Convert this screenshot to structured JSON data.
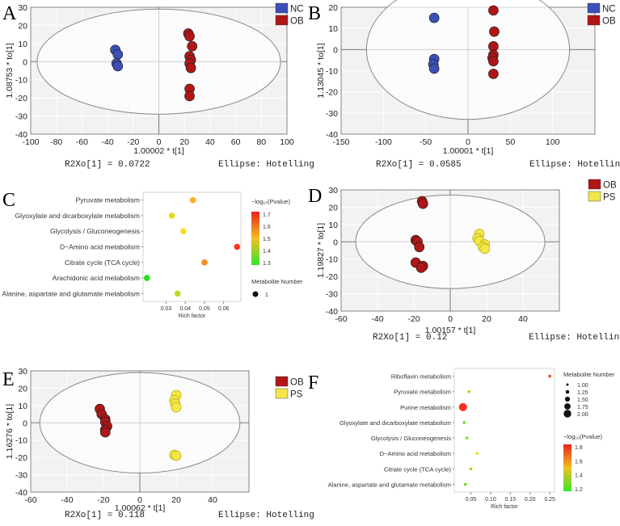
{
  "figure_labels": {
    "A": "A",
    "B": "B",
    "C": "C",
    "D": "D",
    "E": "E",
    "F": "F"
  },
  "colors": {
    "NC": "#3b4fb8",
    "OB": "#b01616",
    "PS": "#f2e64a",
    "plot_bg": "#f2f2f2",
    "grid": "#ffffff"
  },
  "chart_data": [
    {
      "panel": "A",
      "type": "scatter",
      "xlabel": "1.00002 * t[1]",
      "ylabel": "1.08753 * to[1]",
      "xlim": [
        -100,
        100
      ],
      "ylim": [
        -40,
        30
      ],
      "xticks": [
        -100,
        -80,
        -60,
        -40,
        -20,
        0,
        20,
        40,
        60,
        80,
        100
      ],
      "yticks": [
        -40,
        -30,
        -20,
        -10,
        0,
        10,
        20,
        30
      ],
      "ellipse": {
        "rx": 95,
        "ry": 29
      },
      "stats": "R2Xo[1] = 0.0722",
      "ellipse_label": "Ellipse: Hotelling",
      "legend": [
        "NC",
        "OB"
      ],
      "series": [
        {
          "name": "NC",
          "points": [
            [
              -34,
              6.5
            ],
            [
              -32,
              4
            ],
            [
              -33,
              -1
            ],
            [
              -32,
              -2.5
            ]
          ]
        },
        {
          "name": "OB",
          "points": [
            [
              23,
              15.5
            ],
            [
              24,
              14
            ],
            [
              26,
              8.5
            ],
            [
              24,
              3
            ],
            [
              25,
              1
            ],
            [
              24,
              -1
            ],
            [
              25,
              -3.5
            ],
            [
              24,
              -15
            ],
            [
              24,
              -19
            ]
          ]
        }
      ]
    },
    {
      "panel": "B",
      "type": "scatter",
      "xlabel": "1.00001 * t[1]",
      "ylabel": "1.13045 * to[1]",
      "xlim": [
        -150,
        150
      ],
      "ylim": [
        -40,
        20
      ],
      "xticks": [
        -150,
        -100,
        -50,
        0,
        50,
        100
      ],
      "yticks": [
        -40,
        -30,
        -20,
        -10,
        0,
        10,
        20
      ],
      "ellipse": {
        "rx": 120,
        "ry": 33
      },
      "stats": "R2Xo[1] = 0.0585",
      "ellipse_label": "Ellipse: Hotelling",
      "legend": [
        "NC",
        "OB"
      ],
      "series": [
        {
          "name": "NC",
          "points": [
            [
              -40,
              15
            ],
            [
              -40,
              -4.5
            ],
            [
              -41,
              -7
            ],
            [
              -40,
              -9
            ]
          ]
        },
        {
          "name": "OB",
          "points": [
            [
              30,
              18.5
            ],
            [
              31,
              8.5
            ],
            [
              30,
              1.5
            ],
            [
              30,
              -2.5
            ],
            [
              29,
              -4
            ],
            [
              30,
              -5.5
            ],
            [
              30,
              -11.5
            ]
          ]
        }
      ]
    },
    {
      "panel": "C",
      "type": "bubble",
      "categories": [
        "Pyruvate metabolism",
        "Glyoxylate and dicarboxylate metabolism",
        "Glycolysis / Gluconeogenesis",
        "D−Amino acid metabolism",
        "Citrate cycle (TCA cycle)",
        "Arachidonic acid metabolism",
        "Alanine, aspartate and glutamate metabolism"
      ],
      "values": [
        0.044,
        0.033,
        0.039,
        0.067,
        0.05,
        0.02,
        0.036
      ],
      "neglog10_p": [
        1.55,
        1.45,
        1.48,
        1.72,
        1.6,
        1.22,
        1.4
      ],
      "metabolite_number": [
        1,
        1,
        1,
        1,
        1,
        1,
        1
      ],
      "xlabel": "Rich factor",
      "xticks": [
        0.03,
        0.04,
        0.05,
        0.06
      ],
      "xlim": [
        0.018,
        0.069
      ],
      "color_title": "−log₁₀(Pvalue)",
      "color_ticks": [
        1.7,
        1.6,
        1.5,
        1.4,
        1.3
      ],
      "color_range": [
        1.22,
        1.75
      ],
      "size_title": "Metabolite Number",
      "size_ticks": [
        "1"
      ]
    },
    {
      "panel": "D",
      "type": "scatter",
      "xlabel": "1.00157 * t[1]",
      "ylabel": "1.19827 * to[1]",
      "xlim": [
        -60,
        60
      ],
      "ylim": [
        -40,
        30
      ],
      "xticks": [
        -60,
        -40,
        -20,
        0,
        20,
        40
      ],
      "yticks": [
        -40,
        -30,
        -20,
        -10,
        0,
        10,
        20,
        30
      ],
      "ellipse": {
        "rx": 52,
        "ry": 27
      },
      "stats": "R2Xo[1] = 0.12",
      "ellipse_label": "Ellipse: Hotelling",
      "legend": [
        "OB",
        "PS"
      ],
      "series": [
        {
          "name": "OB",
          "points": [
            [
              -15.5,
              23.5
            ],
            [
              -15,
              22
            ],
            [
              -19,
              1
            ],
            [
              -18,
              0
            ],
            [
              -17,
              -3
            ],
            [
              -19,
              -12
            ],
            [
              -15,
              -14
            ],
            [
              -16,
              -15
            ]
          ]
        },
        {
          "name": "PS",
          "points": [
            [
              16,
              4.5
            ],
            [
              15,
              2
            ],
            [
              16,
              0.5
            ],
            [
              19,
              -1.5
            ],
            [
              18,
              -3
            ],
            [
              19,
              -4
            ]
          ]
        }
      ]
    },
    {
      "panel": "E",
      "type": "scatter",
      "xlabel": "1.00062 * t[1]",
      "ylabel": "1.16276 * to[1]",
      "xlim": [
        -60,
        60
      ],
      "ylim": [
        -40,
        30
      ],
      "xticks": [
        -60,
        -40,
        -20,
        0,
        20,
        40
      ],
      "yticks": [
        -40,
        -30,
        -20,
        -10,
        0,
        10,
        20,
        30
      ],
      "ellipse": {
        "rx": 55,
        "ry": 29
      },
      "stats": "R2Xo[1] = 0.118",
      "ellipse_label": "Ellipse: Hotelling",
      "legend": [
        "OB",
        "PS"
      ],
      "series": [
        {
          "name": "OB",
          "points": [
            [
              -22,
              8
            ],
            [
              -21,
              5
            ],
            [
              -19,
              2
            ],
            [
              -19,
              0.5
            ],
            [
              -18,
              -2
            ],
            [
              -19,
              -4
            ],
            [
              -19,
              -5.5
            ]
          ]
        },
        {
          "name": "PS",
          "points": [
            [
              20,
              16
            ],
            [
              19,
              13
            ],
            [
              19.5,
              11
            ],
            [
              20,
              9
            ],
            [
              19,
              -18.5
            ],
            [
              20,
              -19
            ]
          ]
        }
      ]
    },
    {
      "panel": "F",
      "type": "bubble",
      "categories": [
        "Riboflavin metabolism",
        "Pyruvate metabolism",
        "Purine metabolism",
        "Glyoxylate and dicarboxylate metabolism",
        "Glycolysis / Gluconeogenesis",
        "D−Amino acid metabolism",
        "Citrate cycle (TCA cycle)",
        "Alanine, aspartate and glutamate metabolism"
      ],
      "values": [
        0.25,
        0.045,
        0.03,
        0.033,
        0.04,
        0.066,
        0.05,
        0.036
      ],
      "neglog10_p": [
        1.88,
        1.4,
        1.92,
        1.3,
        1.32,
        1.5,
        1.35,
        1.28
      ],
      "metabolite_number": [
        1,
        1,
        2,
        1,
        1,
        1,
        1,
        1
      ],
      "xlabel": "Rich factor",
      "xticks": [
        "0.05",
        "0.10",
        "0.15",
        "0.20",
        "0.25"
      ],
      "xlim": [
        0.008,
        0.262
      ],
      "color_title": "−log₁₀(Pvalue)",
      "color_ticks": [
        1.8,
        1.6,
        1.4,
        1.2
      ],
      "color_range": [
        1.15,
        1.95
      ],
      "size_title": "Metabolite Number",
      "size_ticks": [
        "1.00",
        "1.25",
        "1.50",
        "1.75",
        "2.00"
      ]
    }
  ]
}
